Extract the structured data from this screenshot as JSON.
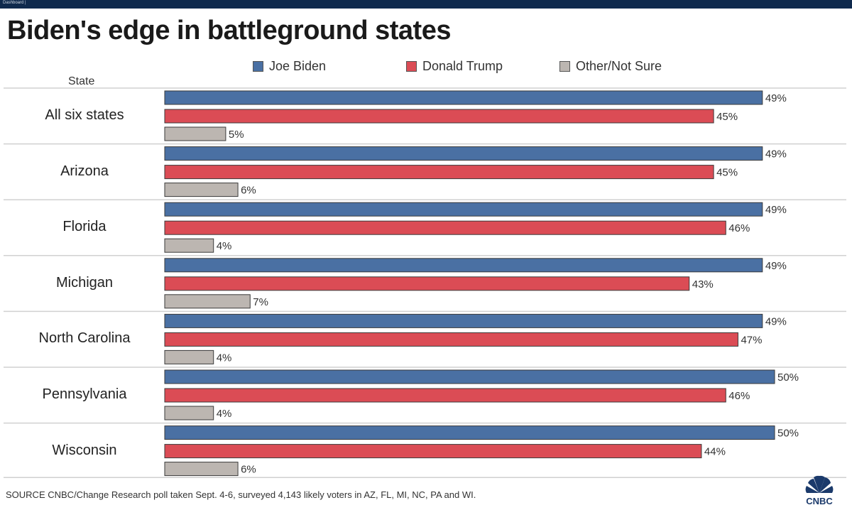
{
  "banner": {
    "label": "Dashboard |"
  },
  "title": "Biden's edge in battleground states",
  "chart_data": {
    "type": "bar",
    "orientation": "horizontal",
    "title": "Biden's edge in battleground states",
    "category_axis_label": "State",
    "categories": [
      "All six states",
      "Arizona",
      "Florida",
      "Michigan",
      "North Carolina",
      "Pennsylvania",
      "Wisconsin"
    ],
    "series": [
      {
        "name": "Joe Biden",
        "color": "#4a70a3",
        "values": [
          49,
          49,
          49,
          49,
          49,
          50,
          50
        ]
      },
      {
        "name": "Donald Trump",
        "color": "#db4c55",
        "values": [
          45,
          45,
          46,
          43,
          47,
          46,
          44
        ]
      },
      {
        "name": "Other/Not Sure",
        "color": "#bcb6b1",
        "values": [
          5,
          6,
          4,
          7,
          4,
          4,
          6
        ]
      }
    ],
    "value_suffix": "%",
    "xlim": [
      0,
      50
    ],
    "legend_position": "top"
  },
  "source": "SOURCE CNBC/Change Research poll taken Sept. 4-6, surveyed 4,143 likely voters in AZ, FL, MI, NC, PA and WI.",
  "logo": {
    "text": "CNBC",
    "icon": "peacock-icon"
  }
}
